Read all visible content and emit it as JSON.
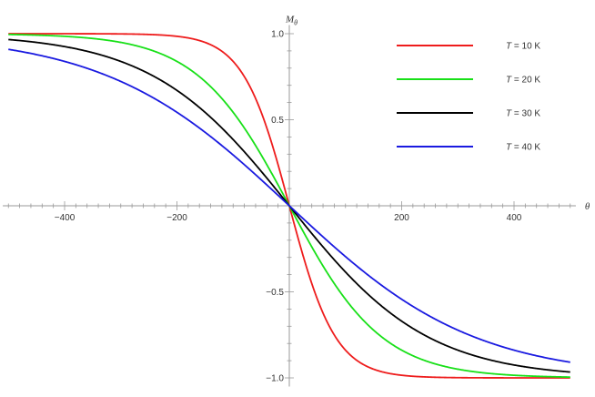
{
  "chart_data": {
    "type": "line",
    "title": "",
    "xlabel": "θ",
    "ylabel_base": "M",
    "ylabel_sub": "θ",
    "xlim": [
      -510,
      510
    ],
    "ylim": [
      -1.05,
      1.05
    ],
    "x_ticks": [
      -400,
      -200,
      200,
      400
    ],
    "x_tick_labels": [
      "−400",
      "−200",
      "200",
      "400"
    ],
    "y_ticks": [
      1.0,
      0.5,
      -0.5,
      -1.0
    ],
    "y_tick_labels": [
      "1.0",
      "0.5",
      "−0.5",
      "−1.0"
    ],
    "grid": false,
    "legend_position": "top-right",
    "series": [
      {
        "name": "T = 10 K",
        "name_var": "T",
        "name_rest": " = 10 K",
        "color": "#ee1c1c",
        "scale": 10
      },
      {
        "name": "T = 20 K",
        "name_var": "T",
        "name_rest": " = 20 K",
        "color": "#18e018",
        "scale": 20
      },
      {
        "name": "T = 30 K",
        "name_var": "T",
        "name_rest": " = 30 K",
        "color": "#000000",
        "scale": 30
      },
      {
        "name": "T = 40 K",
        "name_var": "T",
        "name_rest": " = 40 K",
        "color": "#1a1ae0",
        "scale": 40
      }
    ]
  }
}
